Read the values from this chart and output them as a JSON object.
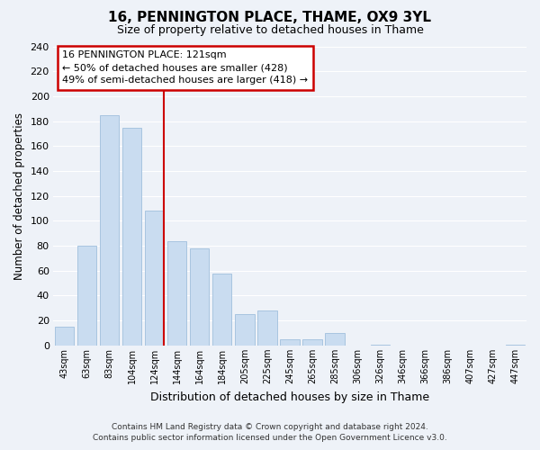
{
  "title": "16, PENNINGTON PLACE, THAME, OX9 3YL",
  "subtitle": "Size of property relative to detached houses in Thame",
  "xlabel": "Distribution of detached houses by size in Thame",
  "ylabel": "Number of detached properties",
  "bar_labels": [
    "43sqm",
    "63sqm",
    "83sqm",
    "104sqm",
    "124sqm",
    "144sqm",
    "164sqm",
    "184sqm",
    "205sqm",
    "225sqm",
    "245sqm",
    "265sqm",
    "285sqm",
    "306sqm",
    "326sqm",
    "346sqm",
    "366sqm",
    "386sqm",
    "407sqm",
    "427sqm",
    "447sqm"
  ],
  "bar_values": [
    15,
    80,
    185,
    175,
    108,
    84,
    78,
    58,
    25,
    28,
    5,
    5,
    10,
    0,
    1,
    0,
    0,
    0,
    0,
    0,
    1
  ],
  "bar_color": "#c9dcf0",
  "bar_edge_color": "#a8c4e0",
  "vline_color": "#cc0000",
  "vline_index": 4,
  "ylim": [
    0,
    240
  ],
  "yticks": [
    0,
    20,
    40,
    60,
    80,
    100,
    120,
    140,
    160,
    180,
    200,
    220,
    240
  ],
  "annotation_title": "16 PENNINGTON PLACE: 121sqm",
  "annotation_line1": "← 50% of detached houses are smaller (428)",
  "annotation_line2": "49% of semi-detached houses are larger (418) →",
  "annotation_box_color": "#ffffff",
  "annotation_box_edge": "#cc0000",
  "footer_line1": "Contains HM Land Registry data © Crown copyright and database right 2024.",
  "footer_line2": "Contains public sector information licensed under the Open Government Licence v3.0.",
  "bg_color": "#eef2f8",
  "plot_bg_color": "#eef2f8",
  "grid_color": "#ffffff",
  "title_fontsize": 11,
  "subtitle_fontsize": 9
}
